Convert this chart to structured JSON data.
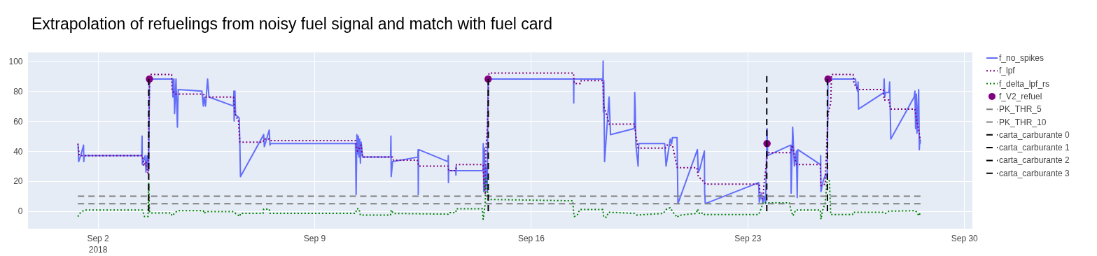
{
  "chart_data": {
    "type": "line",
    "title": "Extrapolation of refuelings from noisy fuel signal and match with fuel card",
    "xlim": [
      "2018-08-30T17:55",
      "2018-09-30T06:22"
    ],
    "xticks": [
      {
        "value": "2018-09-02",
        "label": "Sep 2\n2018"
      },
      {
        "value": "2018-09-09",
        "label": "Sep 9"
      },
      {
        "value": "2018-09-16",
        "label": "Sep 16"
      },
      {
        "value": "2018-09-23",
        "label": "Sep 23"
      },
      {
        "value": "2018-09-30",
        "label": "Sep 30"
      }
    ],
    "ylim": [
      -11.7,
      105.7
    ],
    "yticks": [
      0,
      20,
      40,
      60,
      80,
      100
    ],
    "grid": true,
    "legend": "top right",
    "series": [
      {
        "name": "f_no_spikes",
        "type": "line",
        "line_style": "solid",
        "color": "#636efa",
        "x": [
          "2018-09-01T08:48",
          "2018-09-01T09:12",
          "2018-09-01T10:48",
          "2018-09-01T13:00",
          "2018-09-01T13:12",
          "2018-09-01T13:30",
          "2018-09-03T10:06",
          "2018-09-03T10:24",
          "2018-09-03T10:36",
          "2018-09-03T12:48",
          "2018-09-03T13:24",
          "2018-09-03T14:24",
          "2018-09-03T15:30",
          "2018-09-03T16:06",
          "2018-09-04T10:00",
          "2018-09-04T10:18",
          "2018-09-04T11:06",
          "2018-09-04T11:36",
          "2018-09-04T12:42",
          "2018-09-04T13:48",
          "2018-09-04T14:24",
          "2018-09-05T08:48",
          "2018-09-05T09:54",
          "2018-09-05T10:30",
          "2018-09-05T11:36",
          "2018-09-05T13:12",
          "2018-09-05T14:18",
          "2018-09-06T09:18",
          "2018-09-06T09:36",
          "2018-09-06T09:48",
          "2018-09-06T10:24",
          "2018-09-06T10:54",
          "2018-09-06T12:36",
          "2018-09-06T13:42",
          "2018-09-06T14:12",
          "2018-09-06T14:42",
          "2018-09-07T08:42",
          "2018-09-07T09:12",
          "2018-09-07T10:18",
          "2018-09-07T13:00",
          "2018-09-07T13:36",
          "2018-09-07T14:06",
          "2018-09-10T07:54",
          "2018-09-10T08:24",
          "2018-09-10T09:00",
          "2018-09-10T09:30",
          "2018-09-10T10:06",
          "2018-09-10T10:36",
          "2018-09-10T11:12",
          "2018-09-10T11:42",
          "2018-09-10T12:18",
          "2018-09-10T13:24",
          "2018-09-11T11:06",
          "2018-09-11T11:24",
          "2018-09-11T11:36",
          "2018-09-11T12:42",
          "2018-09-12T08:18",
          "2018-09-12T08:30",
          "2018-09-12T08:36",
          "2018-09-12T08:54",
          "2018-09-13T07:42",
          "2018-09-13T07:54",
          "2018-09-13T08:00",
          "2018-09-13T08:12",
          "2018-09-13T13:42",
          "2018-09-13T13:48",
          "2018-09-13T14:00",
          "2018-09-13T14:06",
          "2018-09-14T10:54",
          "2018-09-14T11:00",
          "2018-09-14T11:24",
          "2018-09-14T11:54",
          "2018-09-14T12:30",
          "2018-09-14T13:00",
          "2018-09-14T14:06",
          "2018-09-14T14:48",
          "2018-09-17T09:00",
          "2018-09-17T09:12",
          "2018-09-17T09:18",
          "2018-09-18T07:48",
          "2018-09-18T08:00",
          "2018-09-18T08:12",
          "2018-09-18T08:30",
          "2018-09-18T09:06",
          "2018-09-18T12:36",
          "2018-09-18T13:42",
          "2018-09-19T08:12",
          "2018-09-19T08:30",
          "2018-09-19T08:54",
          "2018-09-19T09:24",
          "2018-09-19T11:06",
          "2018-09-19T11:36",
          "2018-09-20T07:42",
          "2018-09-20T08:48",
          "2018-09-20T12:00",
          "2018-09-20T13:06",
          "2018-09-20T13:42",
          "2018-09-20T17:18",
          "2018-09-20T18:00",
          "2018-09-21T09:06",
          "2018-09-21T09:48",
          "2018-09-21T10:54",
          "2018-09-21T14:30",
          "2018-09-21T14:42",
          "2018-09-21T15:12",
          "2018-09-23T08:36",
          "2018-09-23T09:06",
          "2018-09-23T10:42",
          "2018-09-23T11:48",
          "2018-09-23T12:54",
          "2018-09-23T14:00",
          "2018-09-23T15:06",
          "2018-09-23T15:36",
          "2018-09-24T09:30",
          "2018-09-24T09:48",
          "2018-09-24T11:00",
          "2018-09-24T12:18",
          "2018-09-24T13:54",
          "2018-09-24T14:30",
          "2018-09-24T15:00",
          "2018-09-25T08:36",
          "2018-09-25T08:42",
          "2018-09-25T08:54",
          "2018-09-25T10:36",
          "2018-09-25T12:42",
          "2018-09-25T13:48",
          "2018-09-25T14:24",
          "2018-09-26T11:42",
          "2018-09-26T12:06",
          "2018-09-26T13:12",
          "2018-09-26T13:42",
          "2018-09-26T14:06",
          "2018-09-27T09:42",
          "2018-09-27T09:54",
          "2018-09-27T10:24",
          "2018-09-27T11:00",
          "2018-09-27T13:42",
          "2018-09-27T14:12",
          "2018-09-27T15:06",
          "2018-09-28T09:12",
          "2018-09-28T09:48",
          "2018-09-28T10:18",
          "2018-09-28T10:54",
          "2018-09-28T11:24",
          "2018-09-28T12:42",
          "2018-09-28T13:12",
          "2018-09-28T13:36",
          "2018-09-28T14:06"
        ],
        "values": [
          44,
          33,
          37,
          44,
          33,
          37,
          37,
          50,
          31,
          37,
          26,
          37,
          27,
          88,
          88,
          76,
          88,
          65,
          88,
          56,
          81,
          80,
          70,
          76,
          70,
          88,
          76,
          70,
          80,
          60,
          80,
          64,
          63,
          62,
          46,
          23,
          51,
          43,
          46,
          54,
          44,
          45,
          45,
          11,
          51,
          38,
          50,
          36,
          48,
          32,
          46,
          36,
          36,
          50,
          23,
          33,
          36,
          41,
          11,
          41,
          33,
          37,
          19,
          27,
          27,
          24,
          30,
          27,
          27,
          45,
          13,
          42,
          15,
          30,
          13,
          88,
          88,
          72,
          88,
          88,
          100,
          66,
          87,
          33,
          76,
          51,
          55,
          79,
          68,
          44,
          30,
          45,
          45,
          30,
          48,
          45,
          49,
          49,
          5,
          41,
          26,
          28,
          40,
          13,
          5,
          19,
          6,
          12,
          5,
          10,
          5,
          55,
          37,
          44,
          12,
          56,
          30,
          40,
          9,
          41,
          31,
          37,
          13,
          20,
          25,
          22,
          88,
          88,
          85,
          80,
          86,
          68,
          79,
          88,
          76,
          79,
          79,
          86,
          48,
          76,
          80,
          55,
          78,
          52,
          81,
          41,
          48,
          45
        ]
      },
      {
        "name": "f_lpf",
        "type": "line",
        "line_style": "dotted",
        "color": "#800080",
        "x": [
          "2018-09-01T08:36",
          "2018-09-01T09:42",
          "2018-09-03T10:36",
          "2018-09-03T11:42",
          "2018-09-03T13:24",
          "2018-09-03T15:00",
          "2018-09-03T16:18",
          "2018-09-04T09:18",
          "2018-09-04T09:42",
          "2018-09-04T12:12",
          "2018-09-05T09:54",
          "2018-09-05T11:36",
          "2018-09-06T09:18",
          "2018-09-06T10:24",
          "2018-09-06T12:00",
          "2018-09-06T13:06",
          "2018-09-06T14:12",
          "2018-09-07T08:12",
          "2018-09-07T08:42",
          "2018-09-07T13:00",
          "2018-09-07T13:36",
          "2018-09-10T07:54",
          "2018-09-10T08:24",
          "2018-09-10T09:30",
          "2018-09-10T12:18",
          "2018-09-10T13:24",
          "2018-09-11T12:42",
          "2018-09-11T13:18",
          "2018-09-12T07:48",
          "2018-09-12T08:54",
          "2018-09-13T07:42",
          "2018-09-13T08:12",
          "2018-09-13T13:42",
          "2018-09-13T14:12",
          "2018-09-14T10:54",
          "2018-09-14T11:24",
          "2018-09-14T12:30",
          "2018-09-14T13:00",
          "2018-09-14T14:06",
          "2018-09-14T15:24",
          "2018-09-17T09:00",
          "2018-09-17T09:36",
          "2018-09-17T14:24",
          "2018-09-17T15:00",
          "2018-09-18T07:48",
          "2018-09-18T08:24",
          "2018-09-18T10:00",
          "2018-09-18T12:42",
          "2018-09-19T08:18",
          "2018-09-19T09:24",
          "2018-09-19T11:06",
          "2018-09-20T08:12",
          "2018-09-20T09:18",
          "2018-09-20T13:42",
          "2018-09-20T17:30",
          "2018-09-21T08:42",
          "2018-09-21T09:48",
          "2018-09-21T13:36",
          "2018-09-21T15:12",
          "2018-09-23T09:06",
          "2018-09-23T09:42",
          "2018-09-23T11:48",
          "2018-09-23T12:54",
          "2018-09-23T15:36",
          "2018-09-24T09:30",
          "2018-09-24T10:36",
          "2018-09-24T11:42",
          "2018-09-24T13:54",
          "2018-09-25T08:24",
          "2018-09-25T08:54",
          "2018-09-25T12:12",
          "2018-09-25T12:42",
          "2018-09-25T14:24",
          "2018-09-25T16:30",
          "2018-09-25T17:06",
          "2018-09-26T09:54",
          "2018-09-26T10:30",
          "2018-09-26T13:42",
          "2018-09-27T09:18",
          "2018-09-27T09:54",
          "2018-09-27T13:42",
          "2018-09-27T14:48",
          "2018-09-28T09:48",
          "2018-09-28T10:54",
          "2018-09-28T12:30",
          "2018-09-28T14:06"
        ],
        "values": [
          45,
          37,
          37,
          30,
          33,
          25,
          91,
          91,
          80,
          78,
          78,
          76,
          76,
          65,
          62,
          61,
          46,
          46,
          48,
          48,
          47,
          47,
          44,
          40,
          44,
          36,
          36,
          34,
          34,
          30,
          30,
          27,
          27,
          31,
          31,
          20,
          12,
          40,
          55,
          92,
          92,
          85,
          85,
          87,
          87,
          70,
          66,
          58,
          58,
          50,
          42,
          42,
          44,
          44,
          29,
          29,
          23,
          20,
          18,
          18,
          10,
          8,
          19,
          39,
          39,
          44,
          40,
          31,
          31,
          17,
          18,
          30,
          65,
          72,
          91,
          91,
          85,
          81,
          81,
          74,
          74,
          68,
          68,
          62,
          55,
          47
        ]
      },
      {
        "name": "f_delta_lpf_rs",
        "type": "line",
        "line_style": "dotted",
        "color": "#008000",
        "x": [
          "2018-09-01T08:36",
          "2018-09-01T10:48",
          "2018-09-01T14:06",
          "2018-09-03T10:36",
          "2018-09-03T12:18",
          "2018-09-03T15:00",
          "2018-09-03T15:30",
          "2018-09-03T16:06",
          "2018-09-03T16:36",
          "2018-09-04T08:54",
          "2018-09-04T09:30",
          "2018-09-04T13:48",
          "2018-09-05T09:54",
          "2018-09-05T10:30",
          "2018-09-05T12:06",
          "2018-09-06T09:18",
          "2018-09-06T10:54",
          "2018-09-06T14:12",
          "2018-09-06T14:42",
          "2018-09-07T08:12",
          "2018-09-07T08:42",
          "2018-09-07T13:00",
          "2018-09-07T13:36",
          "2018-09-10T07:54",
          "2018-09-10T09:00",
          "2018-09-10T10:36",
          "2018-09-10T11:42",
          "2018-09-11T11:06",
          "2018-09-11T11:36",
          "2018-09-11T13:18",
          "2018-09-13T07:42",
          "2018-09-13T08:12",
          "2018-09-13T13:42",
          "2018-09-13T14:12",
          "2018-09-14T10:18",
          "2018-09-14T10:54",
          "2018-09-14T11:24",
          "2018-09-14T12:30",
          "2018-09-14T13:00",
          "2018-09-14T14:06",
          "2018-09-14T14:42",
          "2018-09-17T08:30",
          "2018-09-17T09:00",
          "2018-09-17T09:36",
          "2018-09-17T11:42",
          "2018-09-17T13:54",
          "2018-09-18T07:48",
          "2018-09-18T08:24",
          "2018-09-18T10:30",
          "2018-09-18T12:12",
          "2018-09-19T08:18",
          "2018-09-19T09:54",
          "2018-09-20T06:36",
          "2018-09-20T08:48",
          "2018-09-20T12:00",
          "2018-09-20T14:12",
          "2018-09-20T17:30",
          "2018-09-20T18:36",
          "2018-09-21T08:12",
          "2018-09-21T09:12",
          "2018-09-21T10:54",
          "2018-09-21T13:36",
          "2018-09-21T14:42",
          "2018-09-23T08:36",
          "2018-09-23T10:12",
          "2018-09-23T12:24",
          "2018-09-23T14:30",
          "2018-09-24T08:30",
          "2018-09-24T09:30",
          "2018-09-24T11:12",
          "2018-09-24T13:24",
          "2018-09-25T08:24",
          "2018-09-25T08:54",
          "2018-09-25T10:00",
          "2018-09-25T12:12",
          "2018-09-25T13:48",
          "2018-09-25T15:30",
          "2018-09-25T16:30",
          "2018-09-26T09:24",
          "2018-09-26T09:54",
          "2018-09-27T09:18",
          "2018-09-27T11:00",
          "2018-09-27T13:42",
          "2018-09-28T10:18",
          "2018-09-28T13:00",
          "2018-09-28T14:06"
        ],
        "values": [
          -3.6,
          -0.7,
          0.8,
          0.8,
          -3.6,
          -3.6,
          19,
          0,
          -1.2,
          -1.2,
          -3.1,
          0.3,
          0.3,
          -1.5,
          -0.3,
          -0.3,
          -1.5,
          -3.5,
          -1.5,
          -1.5,
          1.4,
          1.4,
          -1.5,
          -1.5,
          1.6,
          1.6,
          -2.6,
          -2.6,
          0.8,
          -1.5,
          -2,
          -1,
          -1,
          1.6,
          1.6,
          -5.4,
          -3,
          5,
          22,
          17,
          7.8,
          6.9,
          -0.7,
          -3.6,
          -3,
          1.1,
          1.1,
          -4,
          -4,
          -0.7,
          -1.5,
          -2.6,
          -1.5,
          1.1,
          2.3,
          -0.7,
          -4.2,
          -2.8,
          -1.5,
          1.4,
          -2,
          -1,
          -2.3,
          -2.3,
          1.1,
          6.2,
          5.5,
          5.5,
          1.1,
          -3.1,
          0.8,
          0.8,
          -5.4,
          0,
          5.5,
          21.8,
          20,
          -2.3,
          -2.3,
          -0.7,
          -0.7,
          -1.5,
          0,
          0.3,
          -3.1,
          -0.5
        ]
      },
      {
        "name": "f_V2_refuel",
        "type": "scatter",
        "marker": "circle",
        "color": "#800080",
        "x": [
          "2018-09-03T16:06",
          "2018-09-14T14:48",
          "2018-09-23T15:06",
          "2018-09-25T14:24"
        ],
        "values": [
          88,
          88,
          45,
          88
        ]
      },
      {
        "name": "PK_THR_5",
        "type": "line",
        "line_style": "dashed",
        "color": "#808080",
        "x": [
          "2018-09-01T08:36",
          "2018-09-28T14:06"
        ],
        "values": [
          5,
          5
        ]
      },
      {
        "name": "PK_THR_10",
        "type": "line",
        "line_style": "dashed",
        "color": "#808080",
        "x": [
          "2018-09-01T08:36",
          "2018-09-28T14:06"
        ],
        "values": [
          10,
          10
        ]
      },
      {
        "name": "carta_carburante 0",
        "type": "line",
        "line_style": "dashed",
        "color": "#000000",
        "x": [
          "2018-09-03T15:32",
          "2018-09-03T15:32"
        ],
        "values": [
          0,
          88
        ]
      },
      {
        "name": "carta_carburante 1",
        "type": "line",
        "line_style": "dashed",
        "color": "#000000",
        "x": [
          "2018-09-14T14:53",
          "2018-09-14T14:53"
        ],
        "values": [
          0,
          88
        ]
      },
      {
        "name": "carta_carburante 2",
        "type": "line",
        "line_style": "dashed",
        "color": "#000000",
        "x": [
          "2018-09-23T14:53",
          "2018-09-23T14:53"
        ],
        "values": [
          0,
          90
        ]
      },
      {
        "name": "carta_carburante 3",
        "type": "line",
        "line_style": "dashed",
        "color": "#000000",
        "x": [
          "2018-09-25T13:55",
          "2018-09-25T13:55"
        ],
        "values": [
          0,
          88
        ]
      }
    ]
  }
}
